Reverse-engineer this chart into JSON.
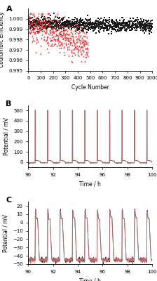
{
  "panel_A": {
    "label": "A",
    "xlabel": "Cycle Number",
    "ylabel": "Coulombic Efficiency",
    "xlim": [
      0,
      1000
    ],
    "ylim": [
      0.995,
      1.001
    ],
    "yticks": [
      0.995,
      0.996,
      0.997,
      0.998,
      0.999,
      1.0
    ],
    "xticks": [
      0,
      100,
      200,
      300,
      400,
      500,
      600,
      700,
      800,
      900,
      1000
    ],
    "black_n": 1000,
    "red_n": 480
  },
  "panel_B": {
    "label": "B",
    "xlabel": "Time / h",
    "ylabel": "Potential / mV",
    "xlim": [
      90,
      100
    ],
    "ylim": [
      -50,
      550
    ],
    "yticks": [
      0,
      100,
      200,
      300,
      400,
      500
    ],
    "xticks": [
      90,
      92,
      94,
      96,
      98,
      100
    ],
    "n_cycles": 10
  },
  "panel_C": {
    "label": "C",
    "xlabel": "Time / h",
    "ylabel": "Potential / mV",
    "xlim": [
      90,
      100
    ],
    "ylim": [
      -50,
      25
    ],
    "yticks": [
      -50,
      -40,
      -30,
      -20,
      -10,
      0,
      10,
      20
    ],
    "xticks": [
      90,
      92,
      94,
      96,
      98,
      100
    ],
    "n_cycles": 10
  },
  "colors": {
    "black": "#1a1a1a",
    "red": "#e84040",
    "red_light": "#f08080",
    "background": "#ffffff"
  }
}
